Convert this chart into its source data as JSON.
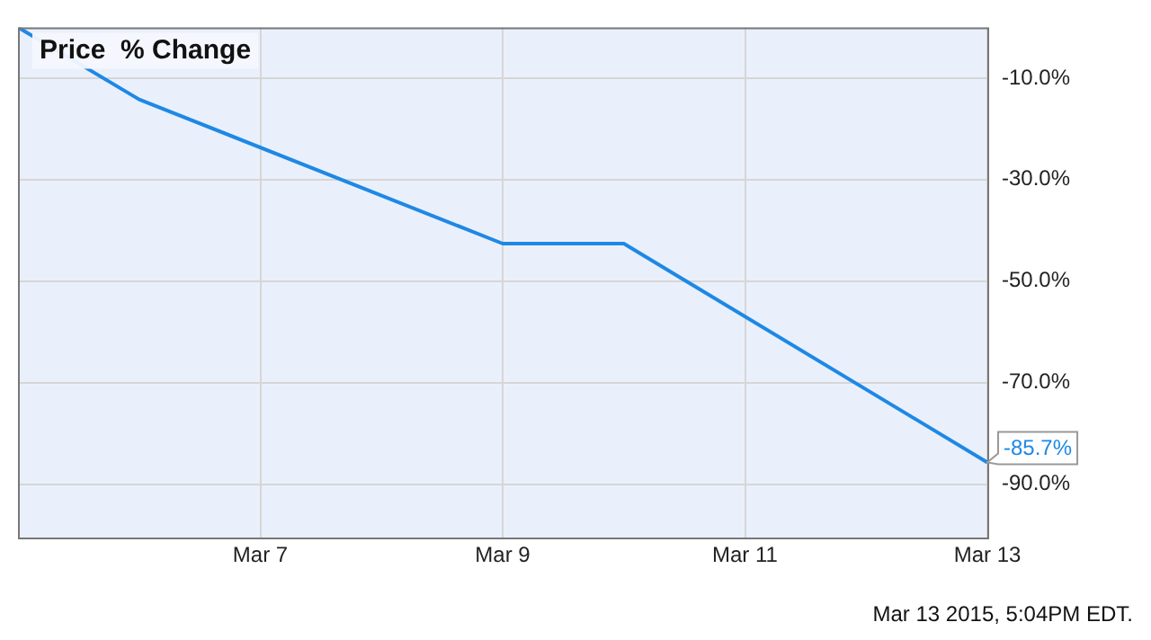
{
  "chart_data": {
    "type": "line",
    "title": "Price  % Change",
    "x": [
      "--03-05",
      "--03-06",
      "--03-09",
      "--03-10",
      "--03-13"
    ],
    "series": [
      {
        "color": "#1e88e5",
        "values": [
          0,
          -14.2,
          -42.6,
          -42.6,
          -85.7
        ],
        "value_labels": [
          null,
          null,
          null,
          null,
          "-85.7%"
        ]
      }
    ],
    "xlim": [
      "--03-05",
      "--03-13"
    ],
    "xticks": [
      {
        "value": "--03-07",
        "label": "Mar 7"
      },
      {
        "value": "--03-09",
        "label": "Mar 9"
      },
      {
        "value": "--03-11",
        "label": "Mar 11"
      },
      {
        "value": "--03-13",
        "label": "Mar 13"
      }
    ],
    "ylim": [
      -100.5,
      0
    ],
    "yticks": [
      {
        "value": -10,
        "label": "-10.0%"
      },
      {
        "value": -30,
        "label": "-30.0%"
      },
      {
        "value": -50,
        "label": "-50.0%"
      },
      {
        "value": -70,
        "label": "-70.0%"
      },
      {
        "value": -90,
        "label": "-90.0%"
      }
    ],
    "grid": true,
    "marker": "none",
    "line_style": "solid",
    "annotations": [
      "Mar 13 2015, 5:04PM EDT."
    ]
  }
}
